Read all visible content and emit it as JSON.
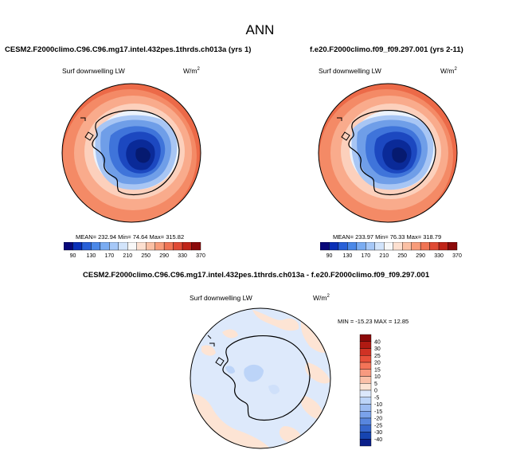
{
  "main_title": "ANN",
  "panels": [
    {
      "title": "CESM2.F2000climo.C96.C96.mg17.intel.432pes.1thrds.ch013a (yrs 1)",
      "variable": "Surf downwelling LW",
      "units": "W/m",
      "units_sup": "2",
      "stats": "MEAN= 232.94   Min=  74.64   Max= 315.82"
    },
    {
      "title": "f.e20.F2000climo.f09_f09.297.001 (yrs 2-11)",
      "variable": "Surf downwelling LW",
      "units": "W/m",
      "units_sup": "2",
      "stats": "MEAN= 233.97   Min=  76.33   Max= 318.79"
    },
    {
      "title": "CESM2.F2000climo.C96.C96.mg17.intel.432pes.1thrds.ch013a - f.e20.F2000climo.f09_f09.297.001",
      "variable": "Surf downwelling LW",
      "units": "W/m",
      "units_sup": "2",
      "stats": "MIN = -15.23  MAX =  12.85"
    }
  ],
  "abs_colorbar": {
    "labels": [
      "90",
      "130",
      "170",
      "210",
      "250",
      "290",
      "330",
      "370"
    ],
    "colors": [
      "#08087a",
      "#0a30b8",
      "#2860d8",
      "#4a88e8",
      "#7aacf2",
      "#a6c8f8",
      "#d2e4fb",
      "#f8f8f8",
      "#fde0d0",
      "#fbc0a4",
      "#f89c7a",
      "#f07454",
      "#e04a34",
      "#c02418",
      "#8c0a0a"
    ]
  },
  "diff_colorbar": {
    "labels": [
      "40",
      "30",
      "25",
      "20",
      "15",
      "10",
      "5",
      "0",
      "-5",
      "-10",
      "-15",
      "-20",
      "-25",
      "-30",
      "-40"
    ],
    "colors": [
      "#8c0a0a",
      "#b01a12",
      "#d03224",
      "#e8503a",
      "#f47458",
      "#f89a80",
      "#fbc0a8",
      "#fde4d4",
      "#dce8fb",
      "#bcd4f8",
      "#9cbcf2",
      "#7aa2ea",
      "#5886de",
      "#3666cc",
      "#1644b0",
      "#0a1f8a"
    ]
  }
}
